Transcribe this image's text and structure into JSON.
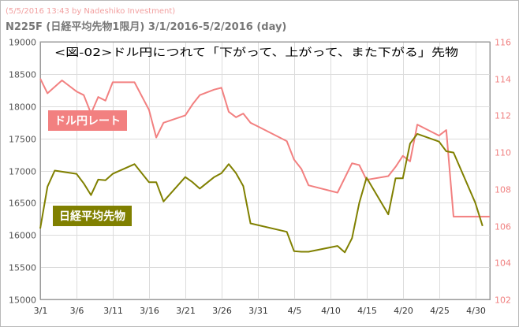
{
  "header": {
    "credit": "(5/5/2016 13:43 by Nadeshiko Investment)",
    "subtitle": "N225F (日経平均先物1限月) 3/1/2016-5/2/2016 (day)"
  },
  "colors": {
    "usdjpy": "#f28080",
    "nikkei": "#808000",
    "grid": "#dcdcdc",
    "left_axis_text": "#555555",
    "right_axis_text": "#f08080",
    "title_text": "#000000"
  },
  "chart_data": {
    "type": "line",
    "title": "<図-02>ドル円につれて「下がって、上がって、また下がる」先物",
    "x_tick_labels": [
      "3/1",
      "3/6",
      "3/11",
      "3/16",
      "3/21",
      "3/26",
      "3/31",
      "4/5",
      "4/10",
      "4/15",
      "4/20",
      "4/25",
      "4/30"
    ],
    "x_tick_days": [
      1,
      6,
      11,
      16,
      21,
      26,
      31,
      36,
      41,
      46,
      51,
      56,
      61
    ],
    "x_range": [
      1,
      63
    ],
    "left_axis": {
      "ylim": [
        15000,
        19000
      ],
      "ticks": [
        15000,
        15500,
        16000,
        16500,
        17000,
        17500,
        18000,
        18500,
        19000
      ]
    },
    "right_axis": {
      "ylim": [
        102,
        116
      ],
      "ticks": [
        102,
        104,
        106,
        108,
        110,
        112,
        114,
        116
      ]
    },
    "grid": true,
    "series": [
      {
        "name": "ドル円レート",
        "axis": "right",
        "x": [
          1,
          2,
          4,
          6,
          7,
          8,
          9,
          10,
          11,
          14,
          16,
          17,
          18,
          21,
          22,
          23,
          25,
          26,
          27,
          28,
          29,
          30,
          31,
          35,
          36,
          37,
          38,
          42,
          43,
          44,
          45,
          46,
          49,
          50,
          51,
          52,
          53,
          56,
          57,
          58,
          63
        ],
        "y": [
          114.0,
          113.2,
          113.9,
          113.3,
          113.1,
          112.1,
          113.0,
          112.8,
          113.8,
          113.8,
          112.3,
          110.8,
          111.6,
          112.0,
          112.6,
          113.1,
          113.4,
          113.5,
          112.2,
          111.9,
          112.1,
          111.6,
          111.4,
          110.6,
          109.6,
          109.1,
          108.2,
          107.8,
          108.6,
          109.4,
          109.3,
          108.5,
          108.7,
          109.2,
          109.8,
          109.5,
          111.5,
          110.9,
          111.2,
          106.5,
          106.5
        ]
      },
      {
        "name": "日経平均先物",
        "axis": "left",
        "x": [
          1,
          2,
          3,
          6,
          7,
          8,
          9,
          10,
          11,
          14,
          16,
          17,
          18,
          21,
          22,
          23,
          25,
          26,
          27,
          28,
          29,
          30,
          35,
          36,
          37,
          38,
          42,
          43,
          44,
          45,
          46,
          49,
          50,
          51,
          52,
          53,
          56,
          57,
          58,
          61,
          62
        ],
        "y": [
          16100,
          16750,
          17000,
          16950,
          16800,
          16620,
          16860,
          16850,
          16950,
          17100,
          16820,
          16820,
          16520,
          16900,
          16820,
          16720,
          16900,
          16960,
          17100,
          16960,
          16760,
          16180,
          16050,
          15750,
          15740,
          15740,
          15830,
          15730,
          15950,
          16500,
          16890,
          16320,
          16880,
          16880,
          17420,
          17570,
          17450,
          17300,
          17280,
          16500,
          16140
        ]
      }
    ]
  }
}
